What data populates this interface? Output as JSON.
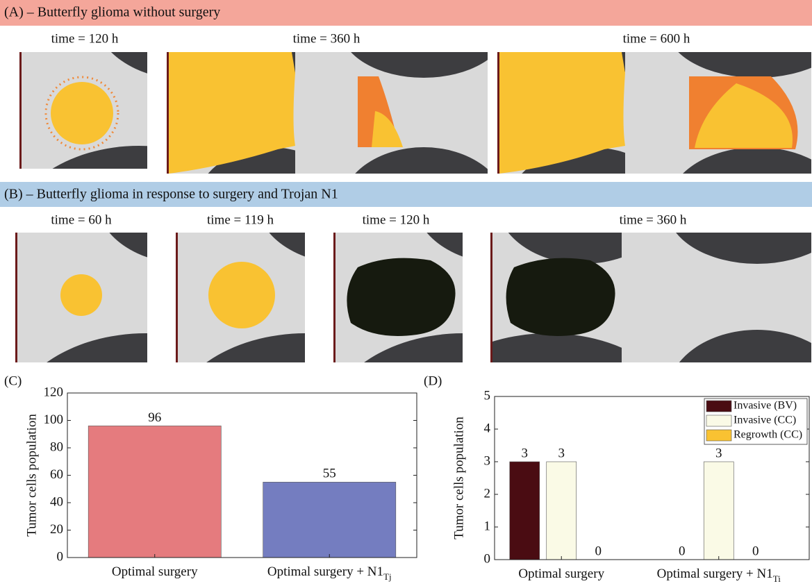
{
  "panel_a": {
    "title": "(A) – Butterfly glioma without surgery",
    "times": [
      "time = 120 h",
      "time = 360 h",
      "time = 600 h"
    ]
  },
  "panel_b": {
    "title": "(B) – Butterfly glioma in response to surgery and Trojan N1",
    "times": [
      "time = 60 h",
      "time = 119 h",
      "time = 120 h",
      "time = 360 h"
    ]
  },
  "chart_data": [
    {
      "type": "bar",
      "panel": "(C)",
      "ylabel": "Tumor cells population",
      "categories": [
        "Optimal surgery",
        "Optimal surgery + N1"
      ],
      "second_category_subscript": "Tj",
      "values": [
        96,
        55
      ],
      "colors": [
        "#e57b7e",
        "#747dc0"
      ],
      "ylim": [
        0,
        120
      ],
      "yticks": [
        0,
        20,
        40,
        60,
        80,
        100,
        120
      ]
    },
    {
      "type": "grouped-bar",
      "panel": "(D)",
      "ylabel": "Tumor cells population",
      "categories": [
        "Optimal surgery",
        "Optimal surgery + N1"
      ],
      "second_category_subscript": "Ti",
      "series": [
        {
          "name": "Invasive (BV)",
          "color": "#4a0c12",
          "values": [
            3,
            0
          ]
        },
        {
          "name": "Invasive (CC)",
          "color": "#fafae6",
          "values": [
            3,
            3
          ]
        },
        {
          "name": "Regrowth (CC)",
          "color": "#f9c232",
          "values": [
            0,
            0
          ]
        }
      ],
      "ylim": [
        0,
        5
      ],
      "yticks": [
        0,
        1,
        2,
        3,
        4,
        5
      ],
      "legend": "upper right"
    }
  ]
}
